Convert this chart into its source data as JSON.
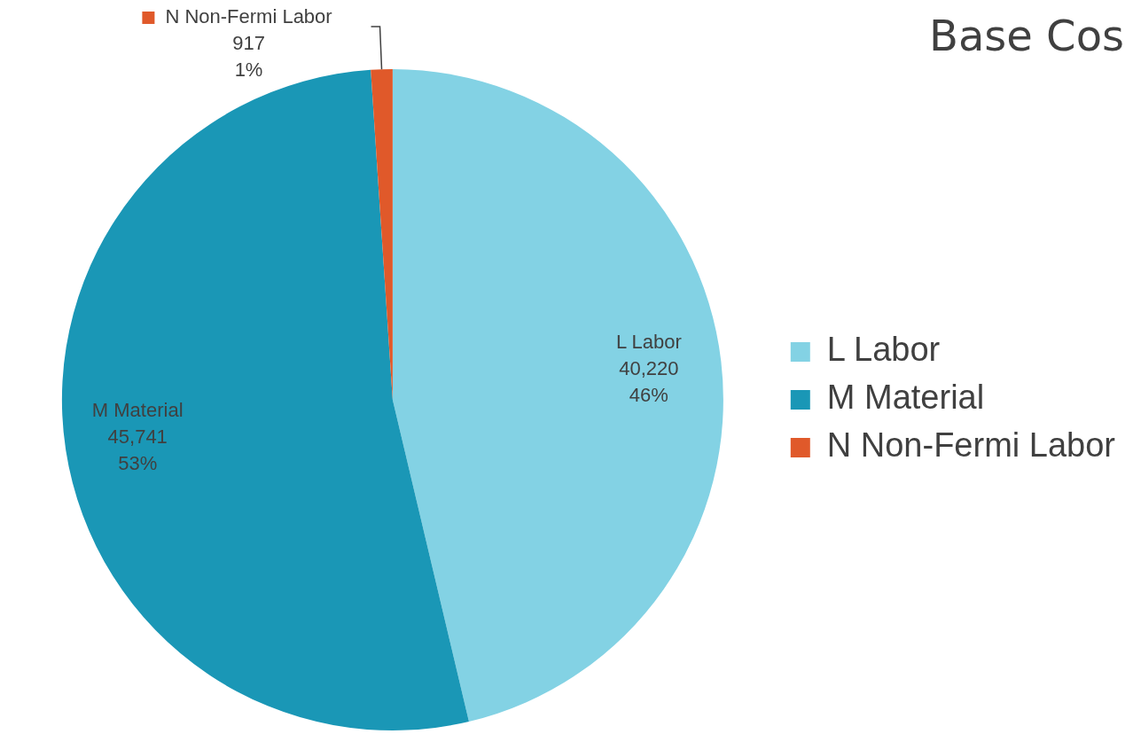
{
  "chart_data": {
    "type": "pie",
    "title": "Base Cos",
    "categories": [
      "L Labor",
      "M Material",
      "N Non-Fermi Labor"
    ],
    "values": [
      40220,
      45741,
      917
    ],
    "colors": [
      "#83d2e4",
      "#1a97b6",
      "#e0592a"
    ],
    "value_labels": [
      "40,220\n46%",
      "45,741\n53%",
      "917\n1%"
    ],
    "legend": "right"
  }
}
